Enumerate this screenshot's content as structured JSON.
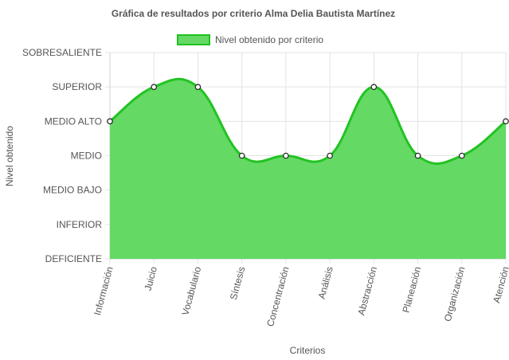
{
  "chart_data": {
    "type": "line",
    "title": "Gráfica de resultados por criterio Alma Delia Bautista Martínez",
    "xlabel": "Criterios",
    "ylabel": "Nivel obtenido",
    "legend_position": "top",
    "fill": true,
    "smooth": true,
    "grid": true,
    "y_levels": [
      "DEFICIENTE",
      "INFERIOR",
      "MEDIO BAJO",
      "MEDIO",
      "MEDIO ALTO",
      "SUPERIOR",
      "SOBRESALIENTE"
    ],
    "ylim": [
      0,
      6
    ],
    "categories": [
      "Información",
      "Juicio",
      "Vocabulario",
      "Síntesis",
      "Concentración",
      "Análisis",
      "Abstracción",
      "Planeación",
      "Organización",
      "Atención"
    ],
    "series": [
      {
        "name": "Nivel obtenido por criterio",
        "values": [
          4,
          5,
          5,
          3,
          3,
          3,
          5,
          3,
          3,
          4
        ],
        "color": "#22c322",
        "fill_color": "#64d964"
      }
    ]
  }
}
